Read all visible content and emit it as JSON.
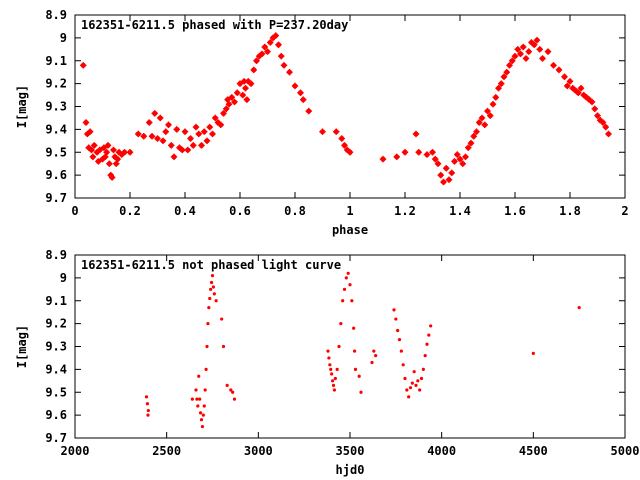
{
  "chart_data": [
    {
      "type": "scatter",
      "title": "162351-6211.5 phased with P=237.20day",
      "xlabel": "phase",
      "ylabel": "I[mag]",
      "xlim": [
        0,
        2
      ],
      "ylim": [
        9.7,
        8.9
      ],
      "y_inverted": true,
      "grid": false,
      "marker_color": "#ff0000",
      "xticks": [
        "0",
        "0.2",
        "0.4",
        "0.6",
        "0.8",
        "1",
        "1.2",
        "1.4",
        "1.6",
        "1.8",
        "2"
      ],
      "xtick_values": [
        0,
        0.2,
        0.4,
        0.6,
        0.8,
        1.0,
        1.2,
        1.4,
        1.6,
        1.8,
        2.0
      ],
      "yticks": [
        "8.9",
        "9",
        "9.1",
        "9.2",
        "9.3",
        "9.4",
        "9.5",
        "9.6",
        "9.7"
      ],
      "ytick_values": [
        8.9,
        9.0,
        9.1,
        9.2,
        9.3,
        9.4,
        9.5,
        9.6,
        9.7
      ],
      "points": [
        [
          0.03,
          9.12
        ],
        [
          0.04,
          9.37
        ],
        [
          0.045,
          9.42
        ],
        [
          0.05,
          9.48
        ],
        [
          0.055,
          9.41
        ],
        [
          0.06,
          9.49
        ],
        [
          0.065,
          9.52
        ],
        [
          0.07,
          9.47
        ],
        [
          0.08,
          9.5
        ],
        [
          0.085,
          9.54
        ],
        [
          0.09,
          9.49
        ],
        [
          0.1,
          9.53
        ],
        [
          0.105,
          9.48
        ],
        [
          0.11,
          9.52
        ],
        [
          0.115,
          9.5
        ],
        [
          0.12,
          9.47
        ],
        [
          0.125,
          9.55
        ],
        [
          0.13,
          9.6
        ],
        [
          0.135,
          9.61
        ],
        [
          0.14,
          9.49
        ],
        [
          0.145,
          9.52
        ],
        [
          0.15,
          9.55
        ],
        [
          0.155,
          9.53
        ],
        [
          0.16,
          9.5
        ],
        [
          0.17,
          9.51
        ],
        [
          0.18,
          9.5
        ],
        [
          0.2,
          9.5
        ],
        [
          0.23,
          9.42
        ],
        [
          0.25,
          9.43
        ],
        [
          0.27,
          9.37
        ],
        [
          0.28,
          9.43
        ],
        [
          0.29,
          9.33
        ],
        [
          0.3,
          9.44
        ],
        [
          0.31,
          9.35
        ],
        [
          0.32,
          9.45
        ],
        [
          0.33,
          9.41
        ],
        [
          0.34,
          9.38
        ],
        [
          0.35,
          9.47
        ],
        [
          0.36,
          9.52
        ],
        [
          0.37,
          9.4
        ],
        [
          0.38,
          9.48
        ],
        [
          0.39,
          9.49
        ],
        [
          0.4,
          9.41
        ],
        [
          0.41,
          9.49
        ],
        [
          0.42,
          9.44
        ],
        [
          0.43,
          9.47
        ],
        [
          0.44,
          9.39
        ],
        [
          0.45,
          9.42
        ],
        [
          0.46,
          9.47
        ],
        [
          0.47,
          9.41
        ],
        [
          0.48,
          9.45
        ],
        [
          0.49,
          9.39
        ],
        [
          0.5,
          9.42
        ],
        [
          0.51,
          9.35
        ],
        [
          0.52,
          9.37
        ],
        [
          0.53,
          9.38
        ],
        [
          0.54,
          9.33
        ],
        [
          0.55,
          9.31
        ],
        [
          0.555,
          9.27
        ],
        [
          0.56,
          9.29
        ],
        [
          0.57,
          9.26
        ],
        [
          0.58,
          9.28
        ],
        [
          0.59,
          9.24
        ],
        [
          0.6,
          9.2
        ],
        [
          0.61,
          9.25
        ],
        [
          0.615,
          9.19
        ],
        [
          0.62,
          9.22
        ],
        [
          0.625,
          9.27
        ],
        [
          0.63,
          9.19
        ],
        [
          0.64,
          9.2
        ],
        [
          0.65,
          9.14
        ],
        [
          0.66,
          9.1
        ],
        [
          0.67,
          9.08
        ],
        [
          0.68,
          9.07
        ],
        [
          0.69,
          9.04
        ],
        [
          0.7,
          9.06
        ],
        [
          0.71,
          9.02
        ],
        [
          0.72,
          9.0
        ],
        [
          0.73,
          8.99
        ],
        [
          0.74,
          9.03
        ],
        [
          0.75,
          9.08
        ],
        [
          0.76,
          9.12
        ],
        [
          0.78,
          9.15
        ],
        [
          0.8,
          9.21
        ],
        [
          0.82,
          9.24
        ],
        [
          0.83,
          9.27
        ],
        [
          0.85,
          9.32
        ],
        [
          0.9,
          9.41
        ],
        [
          0.95,
          9.41
        ],
        [
          0.97,
          9.44
        ],
        [
          0.98,
          9.47
        ],
        [
          0.99,
          9.49
        ],
        [
          1.0,
          9.5
        ],
        [
          1.12,
          9.53
        ],
        [
          1.17,
          9.52
        ],
        [
          1.2,
          9.5
        ],
        [
          1.24,
          9.42
        ],
        [
          1.25,
          9.5
        ],
        [
          1.28,
          9.51
        ],
        [
          1.3,
          9.5
        ],
        [
          1.31,
          9.53
        ],
        [
          1.32,
          9.55
        ],
        [
          1.33,
          9.6
        ],
        [
          1.34,
          9.63
        ],
        [
          1.35,
          9.57
        ],
        [
          1.36,
          9.62
        ],
        [
          1.37,
          9.59
        ],
        [
          1.38,
          9.54
        ],
        [
          1.39,
          9.51
        ],
        [
          1.4,
          9.53
        ],
        [
          1.41,
          9.55
        ],
        [
          1.42,
          9.52
        ],
        [
          1.43,
          9.48
        ],
        [
          1.44,
          9.46
        ],
        [
          1.45,
          9.43
        ],
        [
          1.46,
          9.41
        ],
        [
          1.47,
          9.37
        ],
        [
          1.48,
          9.35
        ],
        [
          1.49,
          9.38
        ],
        [
          1.5,
          9.32
        ],
        [
          1.51,
          9.34
        ],
        [
          1.52,
          9.29
        ],
        [
          1.53,
          9.26
        ],
        [
          1.54,
          9.22
        ],
        [
          1.55,
          9.2
        ],
        [
          1.56,
          9.17
        ],
        [
          1.57,
          9.15
        ],
        [
          1.58,
          9.12
        ],
        [
          1.59,
          9.1
        ],
        [
          1.6,
          9.08
        ],
        [
          1.61,
          9.05
        ],
        [
          1.62,
          9.07
        ],
        [
          1.63,
          9.04
        ],
        [
          1.64,
          9.09
        ],
        [
          1.65,
          9.06
        ],
        [
          1.66,
          9.02
        ],
        [
          1.67,
          9.03
        ],
        [
          1.68,
          9.01
        ],
        [
          1.69,
          9.05
        ],
        [
          1.7,
          9.09
        ],
        [
          1.72,
          9.06
        ],
        [
          1.74,
          9.12
        ],
        [
          1.76,
          9.14
        ],
        [
          1.78,
          9.17
        ],
        [
          1.79,
          9.21
        ],
        [
          1.8,
          9.19
        ],
        [
          1.81,
          9.22
        ],
        [
          1.82,
          9.23
        ],
        [
          1.83,
          9.24
        ],
        [
          1.84,
          9.22
        ],
        [
          1.85,
          9.25
        ],
        [
          1.86,
          9.26
        ],
        [
          1.87,
          9.27
        ],
        [
          1.88,
          9.28
        ],
        [
          1.89,
          9.31
        ],
        [
          1.9,
          9.34
        ],
        [
          1.91,
          9.36
        ],
        [
          1.92,
          9.37
        ],
        [
          1.93,
          9.39
        ],
        [
          1.94,
          9.42
        ]
      ]
    },
    {
      "type": "scatter",
      "title": "162351-6211.5 not phased light curve",
      "xlabel": "hjd0",
      "ylabel": "I[mag]",
      "xlim": [
        2000,
        5000
      ],
      "ylim": [
        9.7,
        8.9
      ],
      "y_inverted": true,
      "grid": false,
      "marker_color": "#ff0000",
      "xticks": [
        "2000",
        "2500",
        "3000",
        "3500",
        "4000",
        "4500",
        "5000"
      ],
      "xtick_values": [
        2000,
        2500,
        3000,
        3500,
        4000,
        4500,
        5000
      ],
      "yticks": [
        "8.9",
        "9",
        "9.1",
        "9.2",
        "9.3",
        "9.4",
        "9.5",
        "9.6",
        "9.7"
      ],
      "ytick_values": [
        8.9,
        9.0,
        9.1,
        9.2,
        9.3,
        9.4,
        9.5,
        9.6,
        9.7
      ],
      "points": [
        [
          2390,
          9.52
        ],
        [
          2395,
          9.55
        ],
        [
          2398,
          9.6
        ],
        [
          2400,
          9.58
        ],
        [
          2640,
          9.53
        ],
        [
          2660,
          9.49
        ],
        [
          2665,
          9.53
        ],
        [
          2670,
          9.56
        ],
        [
          2675,
          9.43
        ],
        [
          2680,
          9.53
        ],
        [
          2685,
          9.59
        ],
        [
          2690,
          9.62
        ],
        [
          2695,
          9.65
        ],
        [
          2700,
          9.6
        ],
        [
          2705,
          9.56
        ],
        [
          2710,
          9.49
        ],
        [
          2715,
          9.4
        ],
        [
          2720,
          9.3
        ],
        [
          2725,
          9.2
        ],
        [
          2730,
          9.13
        ],
        [
          2735,
          9.09
        ],
        [
          2740,
          9.05
        ],
        [
          2745,
          9.02
        ],
        [
          2750,
          8.99
        ],
        [
          2755,
          9.04
        ],
        [
          2760,
          9.07
        ],
        [
          2770,
          9.1
        ],
        [
          2800,
          9.18
        ],
        [
          2810,
          9.3
        ],
        [
          2830,
          9.47
        ],
        [
          2850,
          9.49
        ],
        [
          2860,
          9.5
        ],
        [
          2870,
          9.53
        ],
        [
          3380,
          9.32
        ],
        [
          3385,
          9.35
        ],
        [
          3390,
          9.38
        ],
        [
          3395,
          9.4
        ],
        [
          3400,
          9.42
        ],
        [
          3405,
          9.45
        ],
        [
          3410,
          9.47
        ],
        [
          3415,
          9.49
        ],
        [
          3420,
          9.44
        ],
        [
          3430,
          9.4
        ],
        [
          3440,
          9.3
        ],
        [
          3450,
          9.2
        ],
        [
          3460,
          9.1
        ],
        [
          3470,
          9.05
        ],
        [
          3480,
          9.0
        ],
        [
          3490,
          8.98
        ],
        [
          3500,
          9.03
        ],
        [
          3510,
          9.1
        ],
        [
          3520,
          9.22
        ],
        [
          3525,
          9.32
        ],
        [
          3530,
          9.4
        ],
        [
          3550,
          9.43
        ],
        [
          3560,
          9.5
        ],
        [
          3620,
          9.37
        ],
        [
          3630,
          9.32
        ],
        [
          3640,
          9.34
        ],
        [
          3740,
          9.14
        ],
        [
          3750,
          9.18
        ],
        [
          3760,
          9.23
        ],
        [
          3770,
          9.27
        ],
        [
          3780,
          9.32
        ],
        [
          3790,
          9.38
        ],
        [
          3800,
          9.44
        ],
        [
          3810,
          9.49
        ],
        [
          3820,
          9.52
        ],
        [
          3830,
          9.48
        ],
        [
          3840,
          9.46
        ],
        [
          3850,
          9.41
        ],
        [
          3860,
          9.47
        ],
        [
          3870,
          9.45
        ],
        [
          3880,
          9.49
        ],
        [
          3890,
          9.44
        ],
        [
          3900,
          9.4
        ],
        [
          3910,
          9.34
        ],
        [
          3920,
          9.29
        ],
        [
          3930,
          9.25
        ],
        [
          3940,
          9.21
        ],
        [
          4500,
          9.33
        ],
        [
          4750,
          9.13
        ]
      ]
    }
  ]
}
